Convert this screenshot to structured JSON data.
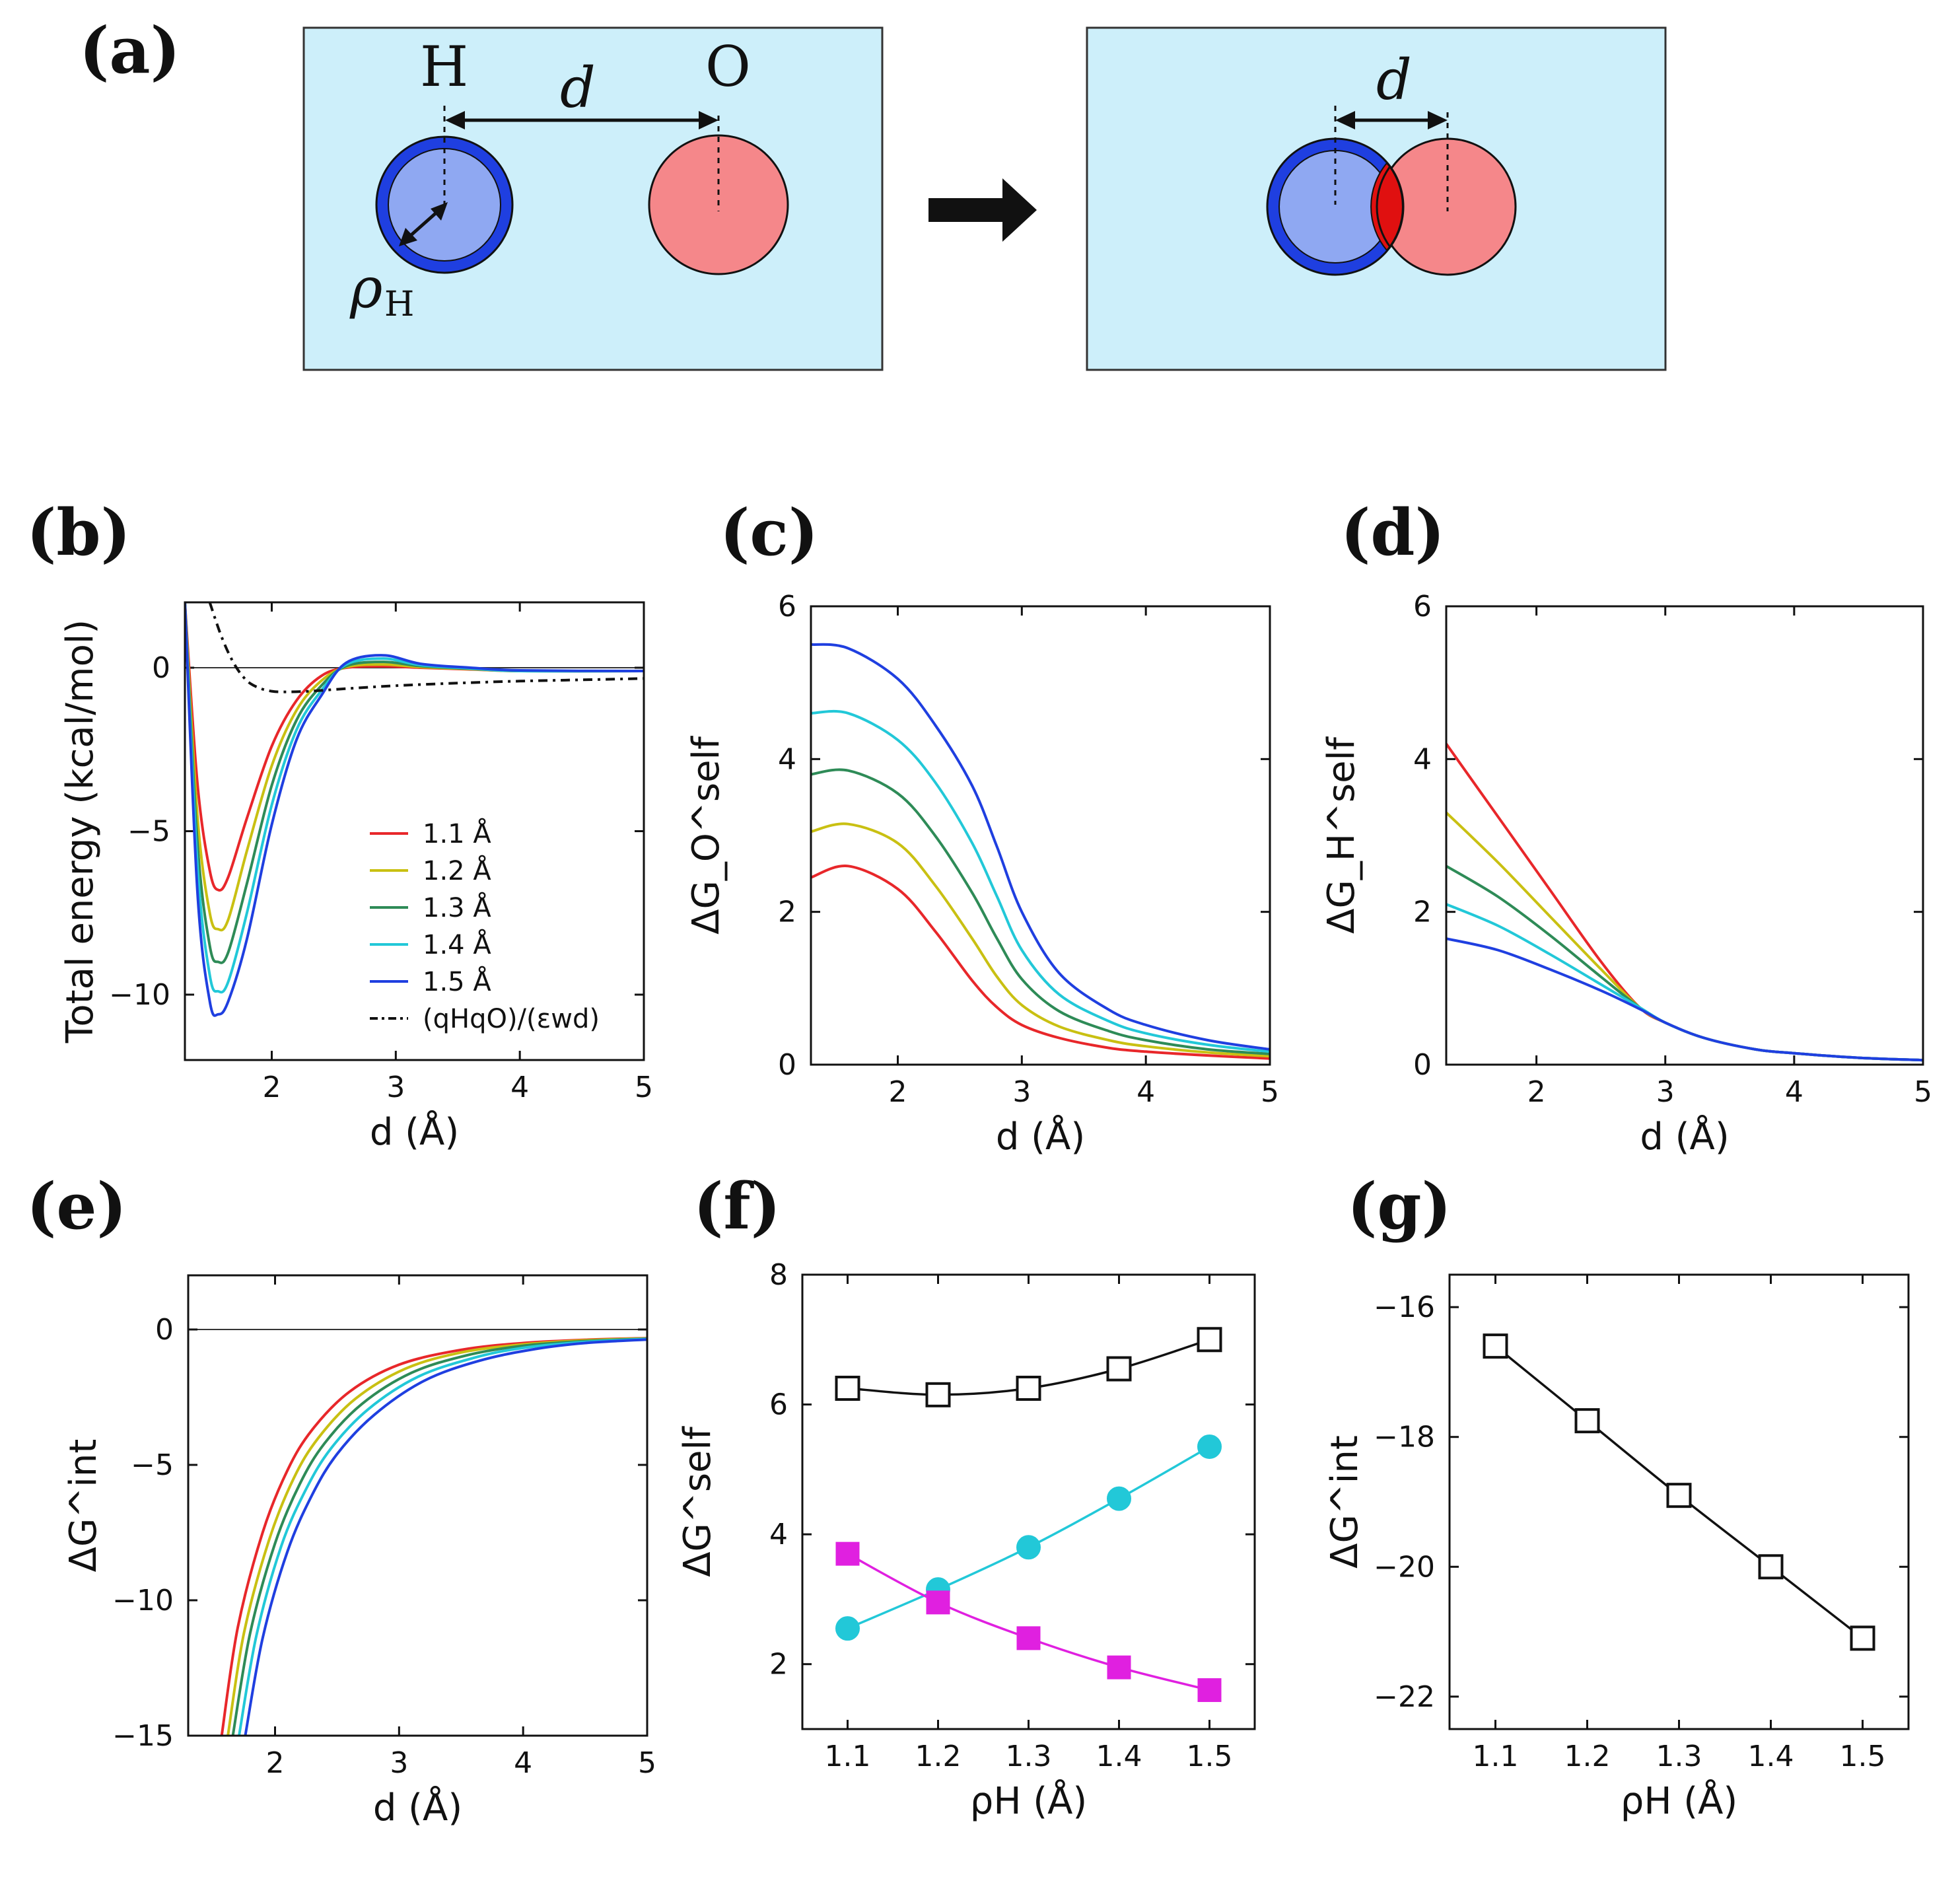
{
  "figure": {
    "panel_labels": [
      "(a)",
      "(b)",
      "(c)",
      "(d)",
      "(e)",
      "(f)",
      "(g)"
    ],
    "schematic": {
      "atom_left": "H",
      "atom_right": "O",
      "distance_symbol": "d",
      "radius_symbol": "ρ",
      "radius_subscript": "H",
      "colors": {
        "background": "#cdeffa",
        "hydrogen": "#8fa8f2",
        "hydrogen_shell": "#1f3fe0",
        "oxygen": "#f5878a",
        "overlap": "#e01010"
      }
    }
  },
  "chart_data": [
    {
      "panel": "(b)",
      "type": "line",
      "ylabel": "Total energy (kcal/mol)",
      "xlabel": "d (Å)",
      "xlim": [
        1.3,
        5
      ],
      "ylim": [
        -12,
        2
      ],
      "xticks": [
        2,
        3,
        4,
        5
      ],
      "yticks": [
        0,
        -5,
        -10
      ],
      "ytick_labels": [
        "0",
        "−5",
        "−10"
      ],
      "legend_position": "lower-right",
      "series": [
        {
          "name": "1.1 Å",
          "color": "#e8272a",
          "x": [
            1.3,
            1.4,
            1.5,
            1.57,
            1.65,
            1.8,
            2.0,
            2.2,
            2.4,
            2.6,
            2.9,
            3.2,
            3.6,
            4.0,
            5.0
          ],
          "y": [
            2.0,
            -3.5,
            -6.2,
            -6.8,
            -6.4,
            -4.6,
            -2.4,
            -1.0,
            -0.25,
            0.0,
            0.04,
            0.0,
            -0.05,
            -0.1,
            -0.1
          ]
        },
        {
          "name": "1.2 Å",
          "color": "#c9c012",
          "x": [
            1.3,
            1.4,
            1.5,
            1.57,
            1.65,
            1.8,
            2.0,
            2.2,
            2.4,
            2.6,
            2.9,
            3.2,
            3.6,
            4.0,
            5.0
          ],
          "y": [
            2.0,
            -4.5,
            -7.5,
            -8.0,
            -7.7,
            -5.6,
            -3.0,
            -1.3,
            -0.4,
            0.02,
            0.1,
            0.02,
            -0.04,
            -0.1,
            -0.1
          ]
        },
        {
          "name": "1.3 Å",
          "color": "#2e8b57",
          "x": [
            1.3,
            1.4,
            1.5,
            1.57,
            1.65,
            1.8,
            2.0,
            2.2,
            2.4,
            2.6,
            2.9,
            3.2,
            3.6,
            4.0,
            5.0
          ],
          "y": [
            2.0,
            -5.3,
            -8.5,
            -9.0,
            -8.7,
            -6.6,
            -3.6,
            -1.6,
            -0.55,
            0.05,
            0.18,
            0.05,
            -0.03,
            -0.1,
            -0.1
          ]
        },
        {
          "name": "1.4 Å",
          "color": "#22c8d8",
          "x": [
            1.3,
            1.4,
            1.5,
            1.57,
            1.65,
            1.8,
            2.0,
            2.2,
            2.4,
            2.6,
            2.9,
            3.2,
            3.6,
            4.0,
            5.0
          ],
          "y": [
            2.0,
            -6.0,
            -9.4,
            -9.9,
            -9.6,
            -7.5,
            -4.2,
            -1.9,
            -0.7,
            0.1,
            0.28,
            0.08,
            -0.02,
            -0.1,
            -0.1
          ]
        },
        {
          "name": "1.5 Å",
          "color": "#1f3fe0",
          "x": [
            1.3,
            1.4,
            1.5,
            1.57,
            1.65,
            1.8,
            2.0,
            2.2,
            2.4,
            2.6,
            2.9,
            3.2,
            3.6,
            4.0,
            5.0
          ],
          "y": [
            2.0,
            -6.8,
            -10.2,
            -10.6,
            -10.2,
            -8.3,
            -4.8,
            -2.2,
            -0.85,
            0.15,
            0.38,
            0.12,
            0.0,
            -0.08,
            -0.1
          ]
        },
        {
          "name": "(qHqO)/(εwd)",
          "color": "#111111",
          "dashed": true,
          "x": [
            1.5,
            1.6,
            1.7,
            1.8,
            1.9,
            2.0,
            2.1,
            2.3,
            2.6,
            3.0,
            3.5,
            4.0,
            4.5,
            5.0
          ],
          "y": [
            2.0,
            0.9,
            0.1,
            -0.4,
            -0.62,
            -0.72,
            -0.74,
            -0.72,
            -0.64,
            -0.55,
            -0.47,
            -0.41,
            -0.37,
            -0.33
          ]
        }
      ]
    },
    {
      "panel": "(c)",
      "type": "line",
      "ylabel": "ΔG_O^self",
      "xlabel": "d (Å)",
      "xlim": [
        1.3,
        5
      ],
      "ylim": [
        0,
        6
      ],
      "xticks": [
        2,
        3,
        4,
        5
      ],
      "yticks": [
        0,
        2,
        4,
        6
      ],
      "series": [
        {
          "color": "#e8272a",
          "x": [
            1.3,
            1.6,
            2.0,
            2.3,
            2.6,
            2.8,
            3.0,
            3.3,
            3.7,
            4.0,
            4.5,
            5.0
          ],
          "y": [
            2.45,
            2.6,
            2.3,
            1.75,
            1.1,
            0.75,
            0.52,
            0.35,
            0.22,
            0.17,
            0.12,
            0.08
          ]
        },
        {
          "color": "#c9c012",
          "x": [
            1.3,
            1.6,
            2.0,
            2.3,
            2.6,
            2.8,
            3.0,
            3.3,
            3.7,
            4.0,
            4.5,
            5.0
          ],
          "y": [
            3.05,
            3.15,
            2.9,
            2.35,
            1.65,
            1.15,
            0.78,
            0.5,
            0.32,
            0.24,
            0.16,
            0.11
          ]
        },
        {
          "color": "#2e8b57",
          "x": [
            1.3,
            1.6,
            2.0,
            2.3,
            2.6,
            2.8,
            3.0,
            3.3,
            3.7,
            4.0,
            4.5,
            5.0
          ],
          "y": [
            3.8,
            3.85,
            3.55,
            3.0,
            2.25,
            1.65,
            1.12,
            0.7,
            0.44,
            0.32,
            0.2,
            0.14
          ]
        },
        {
          "color": "#22c8d8",
          "x": [
            1.3,
            1.6,
            2.0,
            2.3,
            2.6,
            2.8,
            3.0,
            3.3,
            3.7,
            4.0,
            4.5,
            5.0
          ],
          "y": [
            4.6,
            4.6,
            4.25,
            3.7,
            2.9,
            2.2,
            1.5,
            0.92,
            0.57,
            0.41,
            0.26,
            0.17
          ]
        },
        {
          "color": "#1f3fe0",
          "x": [
            1.3,
            1.6,
            2.0,
            2.3,
            2.6,
            2.8,
            3.0,
            3.3,
            3.7,
            4.0,
            4.5,
            5.0
          ],
          "y": [
            5.5,
            5.45,
            5.05,
            4.45,
            3.65,
            2.85,
            2.0,
            1.2,
            0.72,
            0.52,
            0.32,
            0.2
          ]
        }
      ]
    },
    {
      "panel": "(d)",
      "type": "line",
      "ylabel": "ΔG_H^self",
      "xlabel": "d (Å)",
      "xlim": [
        1.3,
        5
      ],
      "ylim": [
        0,
        6
      ],
      "xticks": [
        2,
        3,
        4,
        5
      ],
      "yticks": [
        0,
        2,
        4,
        6
      ],
      "series": [
        {
          "color": "#e8272a",
          "x": [
            1.3,
            1.7,
            2.1,
            2.5,
            2.8,
            3.0,
            3.3,
            3.7,
            4.0,
            4.5,
            5.0
          ],
          "y": [
            4.2,
            3.25,
            2.3,
            1.35,
            0.75,
            0.55,
            0.35,
            0.2,
            0.15,
            0.09,
            0.06
          ]
        },
        {
          "color": "#c9c012",
          "x": [
            1.3,
            1.7,
            2.1,
            2.5,
            2.8,
            3.0,
            3.3,
            3.7,
            4.0,
            4.5,
            5.0
          ],
          "y": [
            3.3,
            2.65,
            1.95,
            1.25,
            0.75,
            0.55,
            0.35,
            0.2,
            0.15,
            0.09,
            0.06
          ]
        },
        {
          "color": "#2e8b57",
          "x": [
            1.3,
            1.7,
            2.1,
            2.5,
            2.8,
            3.0,
            3.3,
            3.7,
            4.0,
            4.5,
            5.0
          ],
          "y": [
            2.6,
            2.2,
            1.7,
            1.15,
            0.75,
            0.55,
            0.35,
            0.2,
            0.15,
            0.09,
            0.06
          ]
        },
        {
          "color": "#22c8d8",
          "x": [
            1.3,
            1.7,
            2.1,
            2.5,
            2.8,
            3.0,
            3.3,
            3.7,
            4.0,
            4.5,
            5.0
          ],
          "y": [
            2.1,
            1.82,
            1.45,
            1.05,
            0.75,
            0.55,
            0.35,
            0.2,
            0.15,
            0.09,
            0.06
          ]
        },
        {
          "color": "#1f3fe0",
          "x": [
            1.3,
            1.7,
            2.1,
            2.5,
            2.8,
            3.0,
            3.3,
            3.7,
            4.0,
            4.5,
            5.0
          ],
          "y": [
            1.65,
            1.5,
            1.25,
            0.97,
            0.73,
            0.55,
            0.35,
            0.2,
            0.15,
            0.09,
            0.06
          ]
        }
      ]
    },
    {
      "panel": "(e)",
      "type": "line",
      "ylabel": "ΔG^int",
      "xlabel": "d (Å)",
      "xlim": [
        1.3,
        5
      ],
      "ylim": [
        -15,
        2
      ],
      "xticks": [
        2,
        3,
        4,
        5
      ],
      "yticks": [
        0,
        -5,
        -10,
        -15
      ],
      "ytick_labels": [
        "0",
        "−5",
        "−10",
        "−15"
      ],
      "series": [
        {
          "color": "#e8272a",
          "x": [
            1.57,
            1.7,
            1.9,
            2.1,
            2.3,
            2.6,
            3.0,
            3.5,
            4.0,
            4.5,
            5.0
          ],
          "y": [
            -15.0,
            -11.0,
            -7.5,
            -5.2,
            -3.7,
            -2.3,
            -1.3,
            -0.75,
            -0.5,
            -0.38,
            -0.32
          ]
        },
        {
          "color": "#c9c012",
          "x": [
            1.62,
            1.75,
            1.95,
            2.15,
            2.35,
            2.65,
            3.05,
            3.5,
            4.0,
            4.5,
            5.0
          ],
          "y": [
            -15.0,
            -11.2,
            -7.8,
            -5.5,
            -4.0,
            -2.55,
            -1.45,
            -0.85,
            -0.55,
            -0.4,
            -0.33
          ]
        },
        {
          "color": "#2e8b57",
          "x": [
            1.66,
            1.8,
            2.0,
            2.2,
            2.4,
            2.7,
            3.1,
            3.55,
            4.0,
            4.5,
            5.0
          ],
          "y": [
            -15.0,
            -11.2,
            -7.9,
            -5.7,
            -4.2,
            -2.75,
            -1.6,
            -0.95,
            -0.6,
            -0.43,
            -0.34
          ]
        },
        {
          "color": "#22c8d8",
          "x": [
            1.71,
            1.85,
            2.05,
            2.25,
            2.45,
            2.75,
            3.15,
            3.6,
            4.0,
            4.5,
            5.0
          ],
          "y": [
            -15.0,
            -11.3,
            -8.0,
            -5.9,
            -4.4,
            -2.95,
            -1.75,
            -1.05,
            -0.68,
            -0.46,
            -0.35
          ]
        },
        {
          "color": "#1f3fe0",
          "x": [
            1.76,
            1.9,
            2.1,
            2.3,
            2.5,
            2.8,
            3.2,
            3.65,
            4.1,
            4.5,
            5.0
          ],
          "y": [
            -15.0,
            -11.4,
            -8.2,
            -6.1,
            -4.6,
            -3.15,
            -1.9,
            -1.15,
            -0.72,
            -0.5,
            -0.37
          ]
        }
      ]
    },
    {
      "panel": "(f)",
      "type": "line",
      "ylabel": "ΔG^self",
      "xlabel": "ρH (Å)",
      "xlim": [
        1.05,
        1.55
      ],
      "ylim": [
        1,
        8
      ],
      "xticks": [
        1.1,
        1.2,
        1.3,
        1.4,
        1.5
      ],
      "yticks": [
        2,
        4,
        6,
        8
      ],
      "series": [
        {
          "color": "#111111",
          "marker": "open-square",
          "x": [
            1.1,
            1.2,
            1.3,
            1.4,
            1.5
          ],
          "y": [
            6.25,
            6.15,
            6.25,
            6.55,
            7.0
          ]
        },
        {
          "color": "#22c8d8",
          "marker": "filled-circle",
          "x": [
            1.1,
            1.2,
            1.3,
            1.4,
            1.5
          ],
          "y": [
            2.55,
            3.15,
            3.8,
            4.55,
            5.35
          ]
        },
        {
          "color": "#e020e0",
          "marker": "filled-square",
          "x": [
            1.1,
            1.2,
            1.3,
            1.4,
            1.5
          ],
          "y": [
            3.7,
            2.95,
            2.4,
            1.95,
            1.6
          ]
        }
      ]
    },
    {
      "panel": "(g)",
      "type": "line",
      "ylabel": "ΔG^int",
      "xlabel": "ρH (Å)",
      "xlim": [
        1.05,
        1.55
      ],
      "ylim": [
        -22.5,
        -15.5
      ],
      "xticks": [
        1.1,
        1.2,
        1.3,
        1.4,
        1.5
      ],
      "yticks": [
        -16,
        -18,
        -20,
        -22
      ],
      "ytick_labels": [
        "−16",
        "−18",
        "−20",
        "−22"
      ],
      "series": [
        {
          "color": "#111111",
          "marker": "open-square",
          "x": [
            1.1,
            1.2,
            1.3,
            1.4,
            1.5
          ],
          "y": [
            -16.6,
            -17.75,
            -18.9,
            -20.0,
            -21.1
          ]
        }
      ]
    }
  ]
}
